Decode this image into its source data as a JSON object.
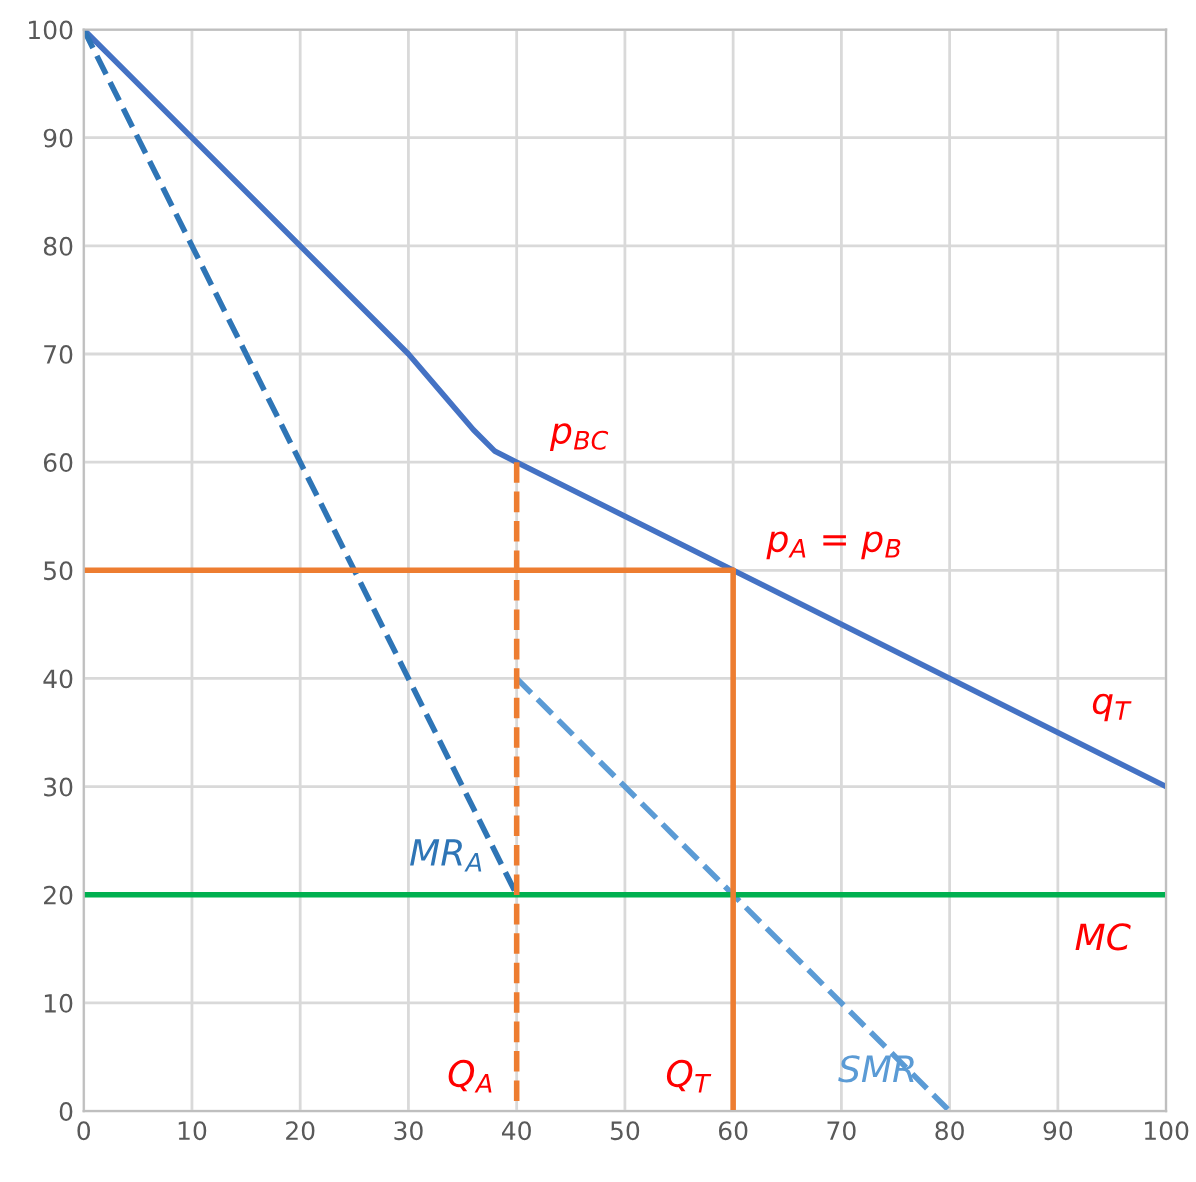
{
  "chart_data": {
    "type": "line",
    "xlim": [
      0,
      100
    ],
    "ylim": [
      0,
      100
    ],
    "xticks": [
      0,
      10,
      20,
      30,
      40,
      50,
      60,
      70,
      80,
      90,
      100
    ],
    "yticks": [
      0,
      10,
      20,
      30,
      40,
      50,
      60,
      70,
      80,
      90,
      100
    ],
    "grid": true,
    "legend": false,
    "marker": "none",
    "series": [
      {
        "color": "#4472c4",
        "line_style": "solid",
        "x": [
          0,
          30,
          33,
          36,
          38,
          40,
          50,
          60,
          100
        ],
        "values": [
          100,
          70,
          66.5,
          63,
          61,
          60,
          55,
          50,
          30
        ]
      },
      {
        "name": "MR$_{A}$",
        "color": "#2e75b6",
        "line_style": "dashed",
        "x": [
          0,
          40
        ],
        "values": [
          100,
          20
        ]
      },
      {
        "name": "SMR",
        "color": "#5b9bd5",
        "line_style": "dashed",
        "x": [
          40,
          80
        ],
        "values": [
          40,
          0
        ]
      },
      {
        "color": "#00b050",
        "line_style": "solid",
        "x": [
          0,
          100
        ],
        "values": [
          20,
          20
        ]
      },
      {
        "color": "#ed7d31",
        "line_style": "solid",
        "x": [
          0,
          60
        ],
        "values": [
          50,
          50
        ]
      },
      {
        "color": "#ed7d31",
        "line_style": "solid",
        "x": [
          60,
          60
        ],
        "values": [
          50,
          0
        ]
      },
      {
        "color": "#ed7d31",
        "line_style": "dashed",
        "x": [
          40,
          40
        ],
        "values": [
          60,
          0
        ]
      }
    ],
    "annotations": [
      {
        "text": "p$_{BC}$",
        "x": 40,
        "y": 60
      },
      {
        "text": "p$_{A}$ = p$_{B}$",
        "x": 60,
        "y": 50
      },
      {
        "text": "q$_{T}$",
        "x": 90,
        "y": 35
      },
      {
        "text": "MC",
        "x": 90,
        "y": 20
      },
      {
        "text": "Q$_{A}$",
        "x": 40,
        "y": 0
      },
      {
        "text": "Q$_{T}$",
        "x": 60,
        "y": 0
      }
    ]
  }
}
